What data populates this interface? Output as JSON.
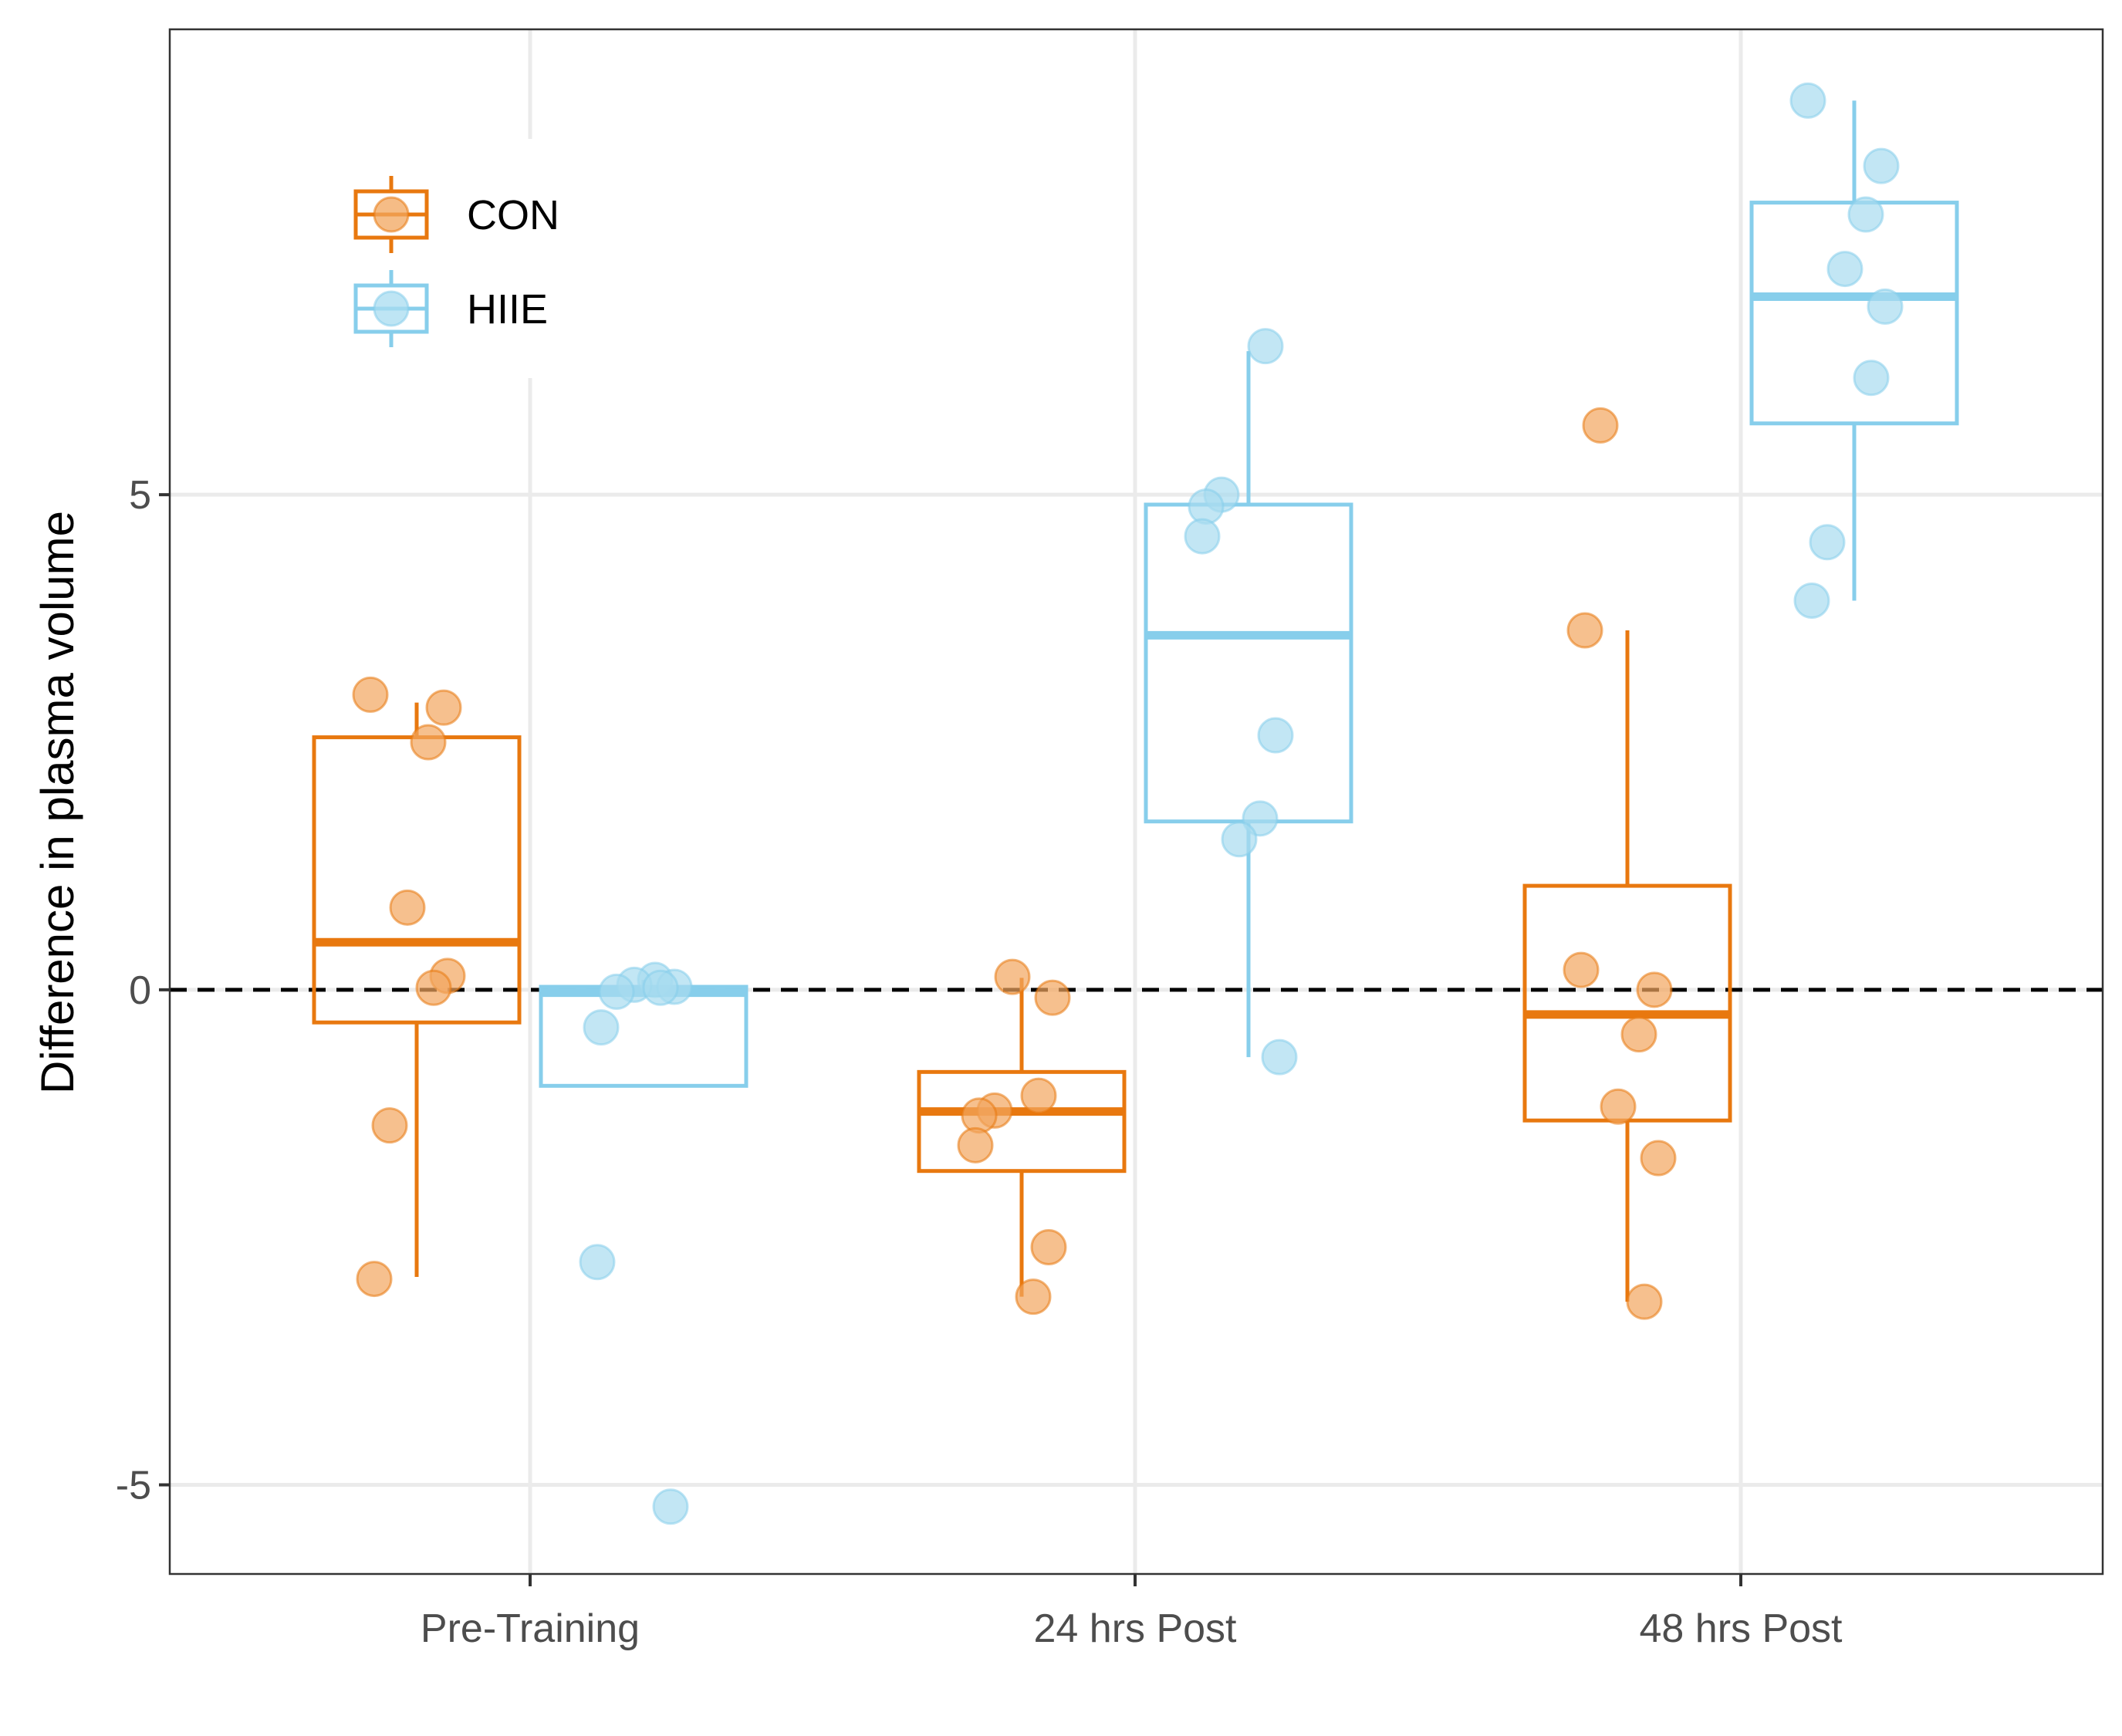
{
  "chart_data": {
    "type": "box",
    "title": "",
    "xlabel": "",
    "ylabel": "Difference in plasma volume",
    "ylim": [
      -5.9,
      9.7
    ],
    "yticks": [
      -5,
      0,
      5
    ],
    "ytick_labels": [
      "-5",
      "0",
      "5"
    ],
    "categories": [
      "Pre-Training",
      "24 hrs Post",
      "48 hrs Post"
    ],
    "grid": true,
    "reference_line": {
      "y": 0,
      "style": "dashed",
      "color": "#000000"
    },
    "legend": {
      "position": "top-left",
      "entries": [
        "CON",
        "HIIE"
      ]
    },
    "series": [
      {
        "name": "CON",
        "color": "#e8780f",
        "point_color": "#f2a55e",
        "boxes": [
          {
            "category": "Pre-Training",
            "min": -2.9,
            "q1": -0.33,
            "median": 0.48,
            "q3": 2.55,
            "max": 2.9
          },
          {
            "category": "24 hrs Post",
            "min": -3.1,
            "q1": -1.83,
            "median": -1.23,
            "q3": -0.83,
            "max": 0.12
          },
          {
            "category": "48 hrs Post",
            "min": -3.15,
            "q1": -1.32,
            "median": -0.25,
            "q3": 1.05,
            "max": 3.63
          }
        ],
        "points": [
          {
            "category": "Pre-Training",
            "values": [
              2.98,
              2.85,
              2.5,
              0.83,
              0.14,
              0.02,
              -1.37,
              -2.92
            ]
          },
          {
            "category": "24 hrs Post",
            "values": [
              0.13,
              -0.08,
              -1.07,
              -1.22,
              -1.27,
              -1.57,
              -2.6,
              -3.1
            ]
          },
          {
            "category": "48 hrs Post",
            "values": [
              5.7,
              3.63,
              0.2,
              0.0,
              -0.45,
              -1.18,
              -1.7,
              -3.15
            ]
          }
        ]
      },
      {
        "name": "HIIE",
        "color": "#87ceeb",
        "point_color": "#a8dcf0",
        "boxes": [
          {
            "category": "Pre-Training",
            "min": -0.97,
            "q1": -0.97,
            "median": -0.03,
            "q3": 0.03,
            "max": 0.1
          },
          {
            "category": "24 hrs Post",
            "min": -0.68,
            "q1": 1.7,
            "median": 3.58,
            "q3": 4.9,
            "max": 6.45
          },
          {
            "category": "48 hrs Post",
            "min": 3.93,
            "q1": 5.72,
            "median": 7.0,
            "q3": 7.95,
            "max": 8.98
          }
        ],
        "points": [
          {
            "category": "Pre-Training",
            "values": [
              0.1,
              0.05,
              0.03,
              0.02,
              -0.02,
              -0.38,
              -2.75,
              -5.22
            ]
          },
          {
            "category": "24 hrs Post",
            "values": [
              6.5,
              5.0,
              4.88,
              4.58,
              2.57,
              1.73,
              1.52,
              -0.68
            ]
          },
          {
            "category": "48 hrs Post",
            "values": [
              8.98,
              8.32,
              7.83,
              7.28,
              6.9,
              6.18,
              4.52,
              3.93
            ]
          }
        ]
      }
    ]
  }
}
